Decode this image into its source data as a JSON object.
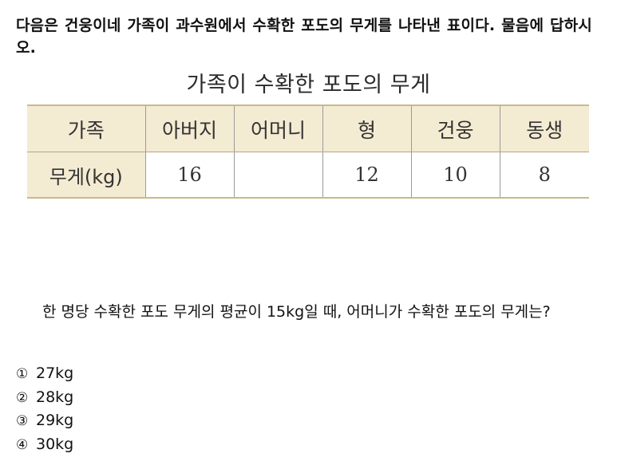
{
  "intro": "다음은 건웅이네 가족이 과수원에서 수확한 포도의 무게를 나타낸 표이다. 물음에 답하시오.",
  "table": {
    "title": "가족이 수확한 포도의 무게",
    "header_label": "가족",
    "row_label": "무게(kg)",
    "columns": [
      "아버지",
      "어머니",
      "형",
      "건웅",
      "동생"
    ],
    "values": [
      "16",
      "",
      "12",
      "10",
      "8"
    ]
  },
  "question": "한 명당 수확한 포도 무게의 평균이 15kg일 때, 어머니가 수확한 포도의 무게는?",
  "choices": [
    {
      "num": "①",
      "text": "27kg"
    },
    {
      "num": "②",
      "text": "28kg"
    },
    {
      "num": "③",
      "text": "29kg"
    },
    {
      "num": "④",
      "text": "30kg"
    }
  ]
}
